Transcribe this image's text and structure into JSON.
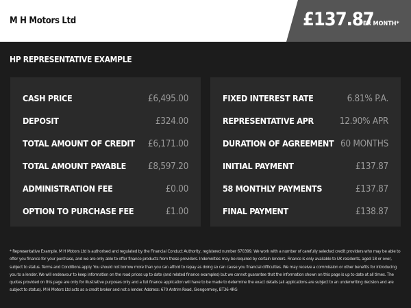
{
  "header": {
    "dealer_name": "M H Motors Ltd",
    "monthly_price": "£137.87",
    "per_month_label": "PER MONTH*"
  },
  "section_title": "HP REPRESENTATIVE EXAMPLE",
  "left_panel": [
    {
      "label": "CASH PRICE",
      "value": "£6,495.00"
    },
    {
      "label": "DEPOSIT",
      "value": "£324.00"
    },
    {
      "label": "TOTAL AMOUNT OF CREDIT",
      "value": "£6,171.00"
    },
    {
      "label": "TOTAL AMOUNT PAYABLE",
      "value": "£8,597.20"
    },
    {
      "label": "ADMINISTRATION FEE",
      "value": "£0.00"
    },
    {
      "label": "OPTION TO PURCHASE FEE",
      "value": "£1.00"
    }
  ],
  "right_panel": [
    {
      "label": "FIXED INTEREST RATE",
      "value": "6.81% P.A."
    },
    {
      "label": "REPRESENTATIVE APR",
      "value": "12.90% APR"
    },
    {
      "label": "DURATION OF AGREEMENT",
      "value": "60 MONTHS"
    },
    {
      "label": "INITIAL PAYMENT",
      "value": "£137.87"
    },
    {
      "label": "58 MONTHLY PAYMENTS",
      "value": "£137.87"
    },
    {
      "label": "FINAL PAYMENT",
      "value": "£138.87"
    }
  ],
  "disclaimer": "* Representative Example. M H Motors Ltd is authorised and regulated by the Financial Conduct Authority, registered number 670399. We work with a number of carefully selected credit providers who may be able to offer you finance for your purchase, and we are only able to offer finance products from these providers. Indemnities may be required by certain lenders. Finance is only available to UK residents, aged 18 or over, subject to status. Terms and Conditions apply. You should not borrow more than you can afford to repay as doing so can cause you financial difficulties. We may receive a commission or other benefits for introducing you to a lender. We will endeavour to keep information on the road prices up to date (and related finance examples) but we cannot guarantee that the information shown on this page is up to date at all times. The quotes provided on this page are only for illustrative purposes only and a full finance application will have to be made to determine the exact details (all applications are subject to an underwriting decision and are subject to status). M H Motors Ltd acts as a credit broker and not a lender. Address: 670 Antrim Road, Glengormley, BT36 4RG"
}
